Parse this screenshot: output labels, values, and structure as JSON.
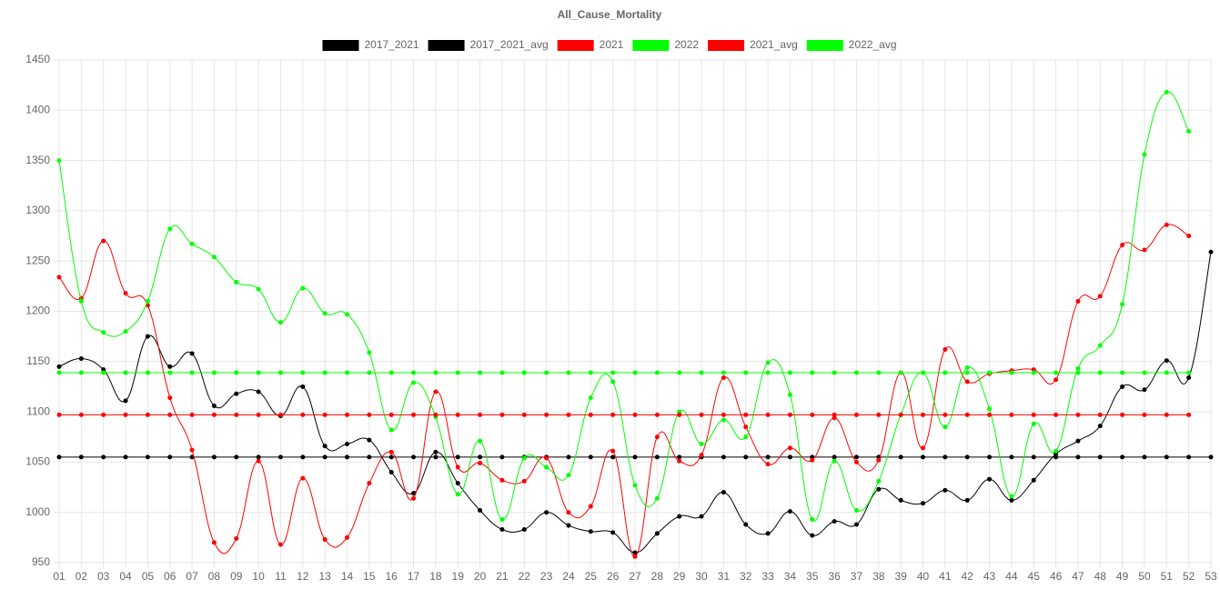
{
  "chart_data": {
    "type": "line",
    "title": "All_Cause_Mortality",
    "categories": [
      "01",
      "02",
      "03",
      "04",
      "05",
      "06",
      "07",
      "08",
      "09",
      "10",
      "11",
      "12",
      "13",
      "14",
      "15",
      "16",
      "17",
      "18",
      "19",
      "20",
      "21",
      "22",
      "23",
      "24",
      "25",
      "26",
      "27",
      "28",
      "29",
      "30",
      "31",
      "32",
      "33",
      "34",
      "35",
      "36",
      "37",
      "38",
      "39",
      "40",
      "41",
      "42",
      "43",
      "44",
      "45",
      "46",
      "47",
      "48",
      "49",
      "50",
      "51",
      "52",
      "53"
    ],
    "series": [
      {
        "name": "2017_2021",
        "color": "#000000",
        "values": [
          1145,
          1153,
          1142,
          1111,
          1175,
          1145,
          1158,
          1106,
          1118,
          1120,
          1096,
          1125,
          1066,
          1068,
          1072,
          1040,
          1019,
          1060,
          1029,
          1002,
          983,
          983,
          1000,
          987,
          981,
          980,
          960,
          979,
          996,
          996,
          1020,
          988,
          979,
          1001,
          977,
          991,
          988,
          1023,
          1012,
          1009,
          1022,
          1012,
          1033,
          1012,
          1032,
          1058,
          1071,
          1086,
          1125,
          1122,
          1151,
          1134,
          1259
        ]
      },
      {
        "name": "2017_2021_avg",
        "color": "#000000",
        "values": [
          1055,
          1055,
          1055,
          1055,
          1055,
          1055,
          1055,
          1055,
          1055,
          1055,
          1055,
          1055,
          1055,
          1055,
          1055,
          1055,
          1055,
          1055,
          1055,
          1055,
          1055,
          1055,
          1055,
          1055,
          1055,
          1055,
          1055,
          1055,
          1055,
          1055,
          1055,
          1055,
          1055,
          1055,
          1055,
          1055,
          1055,
          1055,
          1055,
          1055,
          1055,
          1055,
          1055,
          1055,
          1055,
          1055,
          1055,
          1055,
          1055,
          1055,
          1055,
          1055,
          1055
        ]
      },
      {
        "name": "2021",
        "color": "#ff0000",
        "values": [
          1234,
          1213,
          1270,
          1218,
          1206,
          1114,
          1062,
          970,
          974,
          1051,
          968,
          1034,
          973,
          975,
          1029,
          1060,
          1014,
          1120,
          1045,
          1049,
          1032,
          1031,
          1054,
          1000,
          1006,
          1061,
          956,
          1075,
          1051,
          1057,
          1134,
          1085,
          1048,
          1064,
          1052,
          1094,
          1050,
          1052,
          1139,
          1064,
          1162,
          1130,
          1138,
          1141,
          1142,
          1132,
          1210,
          1215,
          1266,
          1261,
          1286,
          1275,
          null
        ]
      },
      {
        "name": "2022",
        "color": "#00ff00",
        "values": [
          1350,
          1210,
          1179,
          1180,
          1210,
          1282,
          1267,
          1254,
          1229,
          1222,
          1189,
          1223,
          1198,
          1197,
          1159,
          1082,
          1129,
          1095,
          1018,
          1071,
          993,
          1054,
          1045,
          1037,
          1114,
          1130,
          1027,
          1014,
          1100,
          1068,
          1092,
          1075,
          1149,
          1117,
          993,
          1051,
          1002,
          1031,
          1097,
          1139,
          1085,
          1144,
          1103,
          1016,
          1088,
          1061,
          1143,
          1166,
          1207,
          1356,
          1418,
          1379,
          null
        ]
      },
      {
        "name": "2021_avg",
        "color": "#ff0000",
        "values": [
          1097,
          1097,
          1097,
          1097,
          1097,
          1097,
          1097,
          1097,
          1097,
          1097,
          1097,
          1097,
          1097,
          1097,
          1097,
          1097,
          1097,
          1097,
          1097,
          1097,
          1097,
          1097,
          1097,
          1097,
          1097,
          1097,
          1097,
          1097,
          1097,
          1097,
          1097,
          1097,
          1097,
          1097,
          1097,
          1097,
          1097,
          1097,
          1097,
          1097,
          1097,
          1097,
          1097,
          1097,
          1097,
          1097,
          1097,
          1097,
          1097,
          1097,
          1097,
          1097,
          null
        ]
      },
      {
        "name": "2022_avg",
        "color": "#00ff00",
        "values": [
          1139,
          1139,
          1139,
          1139,
          1139,
          1139,
          1139,
          1139,
          1139,
          1139,
          1139,
          1139,
          1139,
          1139,
          1139,
          1139,
          1139,
          1139,
          1139,
          1139,
          1139,
          1139,
          1139,
          1139,
          1139,
          1139,
          1139,
          1139,
          1139,
          1139,
          1139,
          1139,
          1139,
          1139,
          1139,
          1139,
          1139,
          1139,
          1139,
          1139,
          1139,
          1139,
          1139,
          1139,
          1139,
          1139,
          1139,
          1139,
          1139,
          1139,
          1139,
          1139,
          null
        ]
      }
    ],
    "ylim": [
      950,
      1450
    ],
    "yticks": [
      950,
      1000,
      1050,
      1100,
      1150,
      1200,
      1250,
      1300,
      1350,
      1400,
      1450
    ],
    "grid": true,
    "legend": "top"
  }
}
